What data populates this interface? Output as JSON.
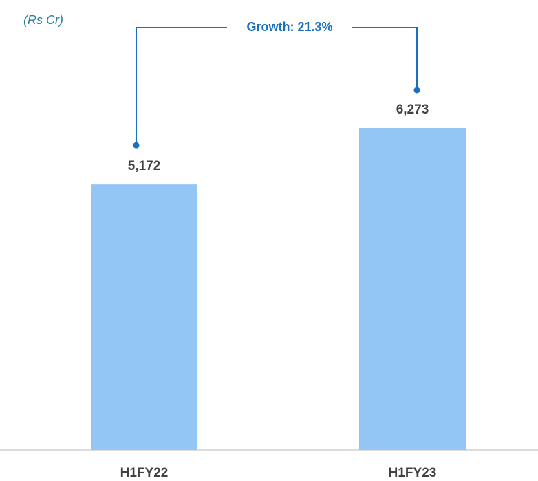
{
  "chart_data": {
    "type": "bar",
    "subtitle": "(Rs Cr)",
    "categories": [
      "H1FY22",
      "H1FY23"
    ],
    "values": [
      5172,
      6273
    ],
    "value_labels": [
      "5,172",
      "6,273"
    ],
    "color": "#93c6f4",
    "annotation": "Growth: 21.3%"
  }
}
